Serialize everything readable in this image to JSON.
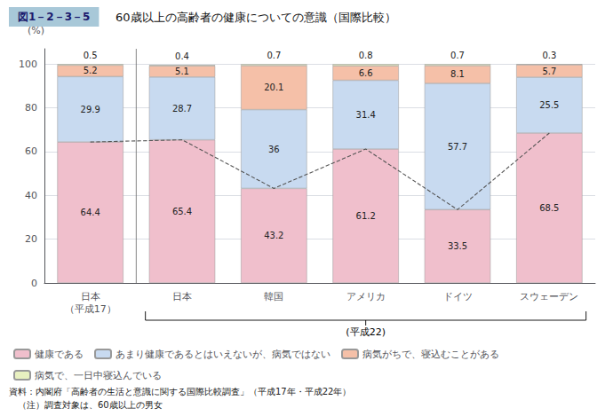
{
  "chart_data": {
    "type": "bar",
    "title": "60歳以上の高齢者の健康についての意識（国際比較）",
    "subtitle": "図1－2－3－5",
    "ylabel": "(%)",
    "categories": [
      "日本\n（平成17）",
      "日本",
      "韓国",
      "アメリカ",
      "ドイツ",
      "スウェーデン"
    ],
    "series": [
      {
        "name": "健康である",
        "color": "#f0bfcc",
        "values": [
          64.4,
          65.4,
          43.2,
          61.2,
          33.5,
          68.5
        ],
        "line_style": "dashed"
      },
      {
        "name": "あまり健康であるとはいえないが、病気ではない",
        "color": "#c8daf0",
        "values": [
          29.9,
          28.7,
          36.0,
          31.4,
          57.7,
          25.5
        ]
      },
      {
        "name": "病気がちで、寝込むことがある",
        "color": "#f5c0a8",
        "values": [
          5.2,
          5.1,
          20.1,
          6.6,
          8.1,
          5.7
        ]
      },
      {
        "name": "病気で、一日中寝込んでいる",
        "color": "#e8f0c0",
        "values": [
          0.5,
          0.4,
          0.7,
          0.8,
          0.7,
          0.3
        ]
      }
    ],
    "ylim": [
      0,
      107
    ],
    "yticks": [
      0,
      20,
      40,
      60,
      80,
      100
    ],
    "grid": true,
    "stacked": true,
    "data_labels": true,
    "legend": "bottom",
    "annotations": [
      "(平成22)",
      "資料：内閣府「高齢者の生活と意識に関する国際比較調査」（平成17年・平成22年）",
      "　（注）調査対象は、60歳以上の男女"
    ]
  }
}
